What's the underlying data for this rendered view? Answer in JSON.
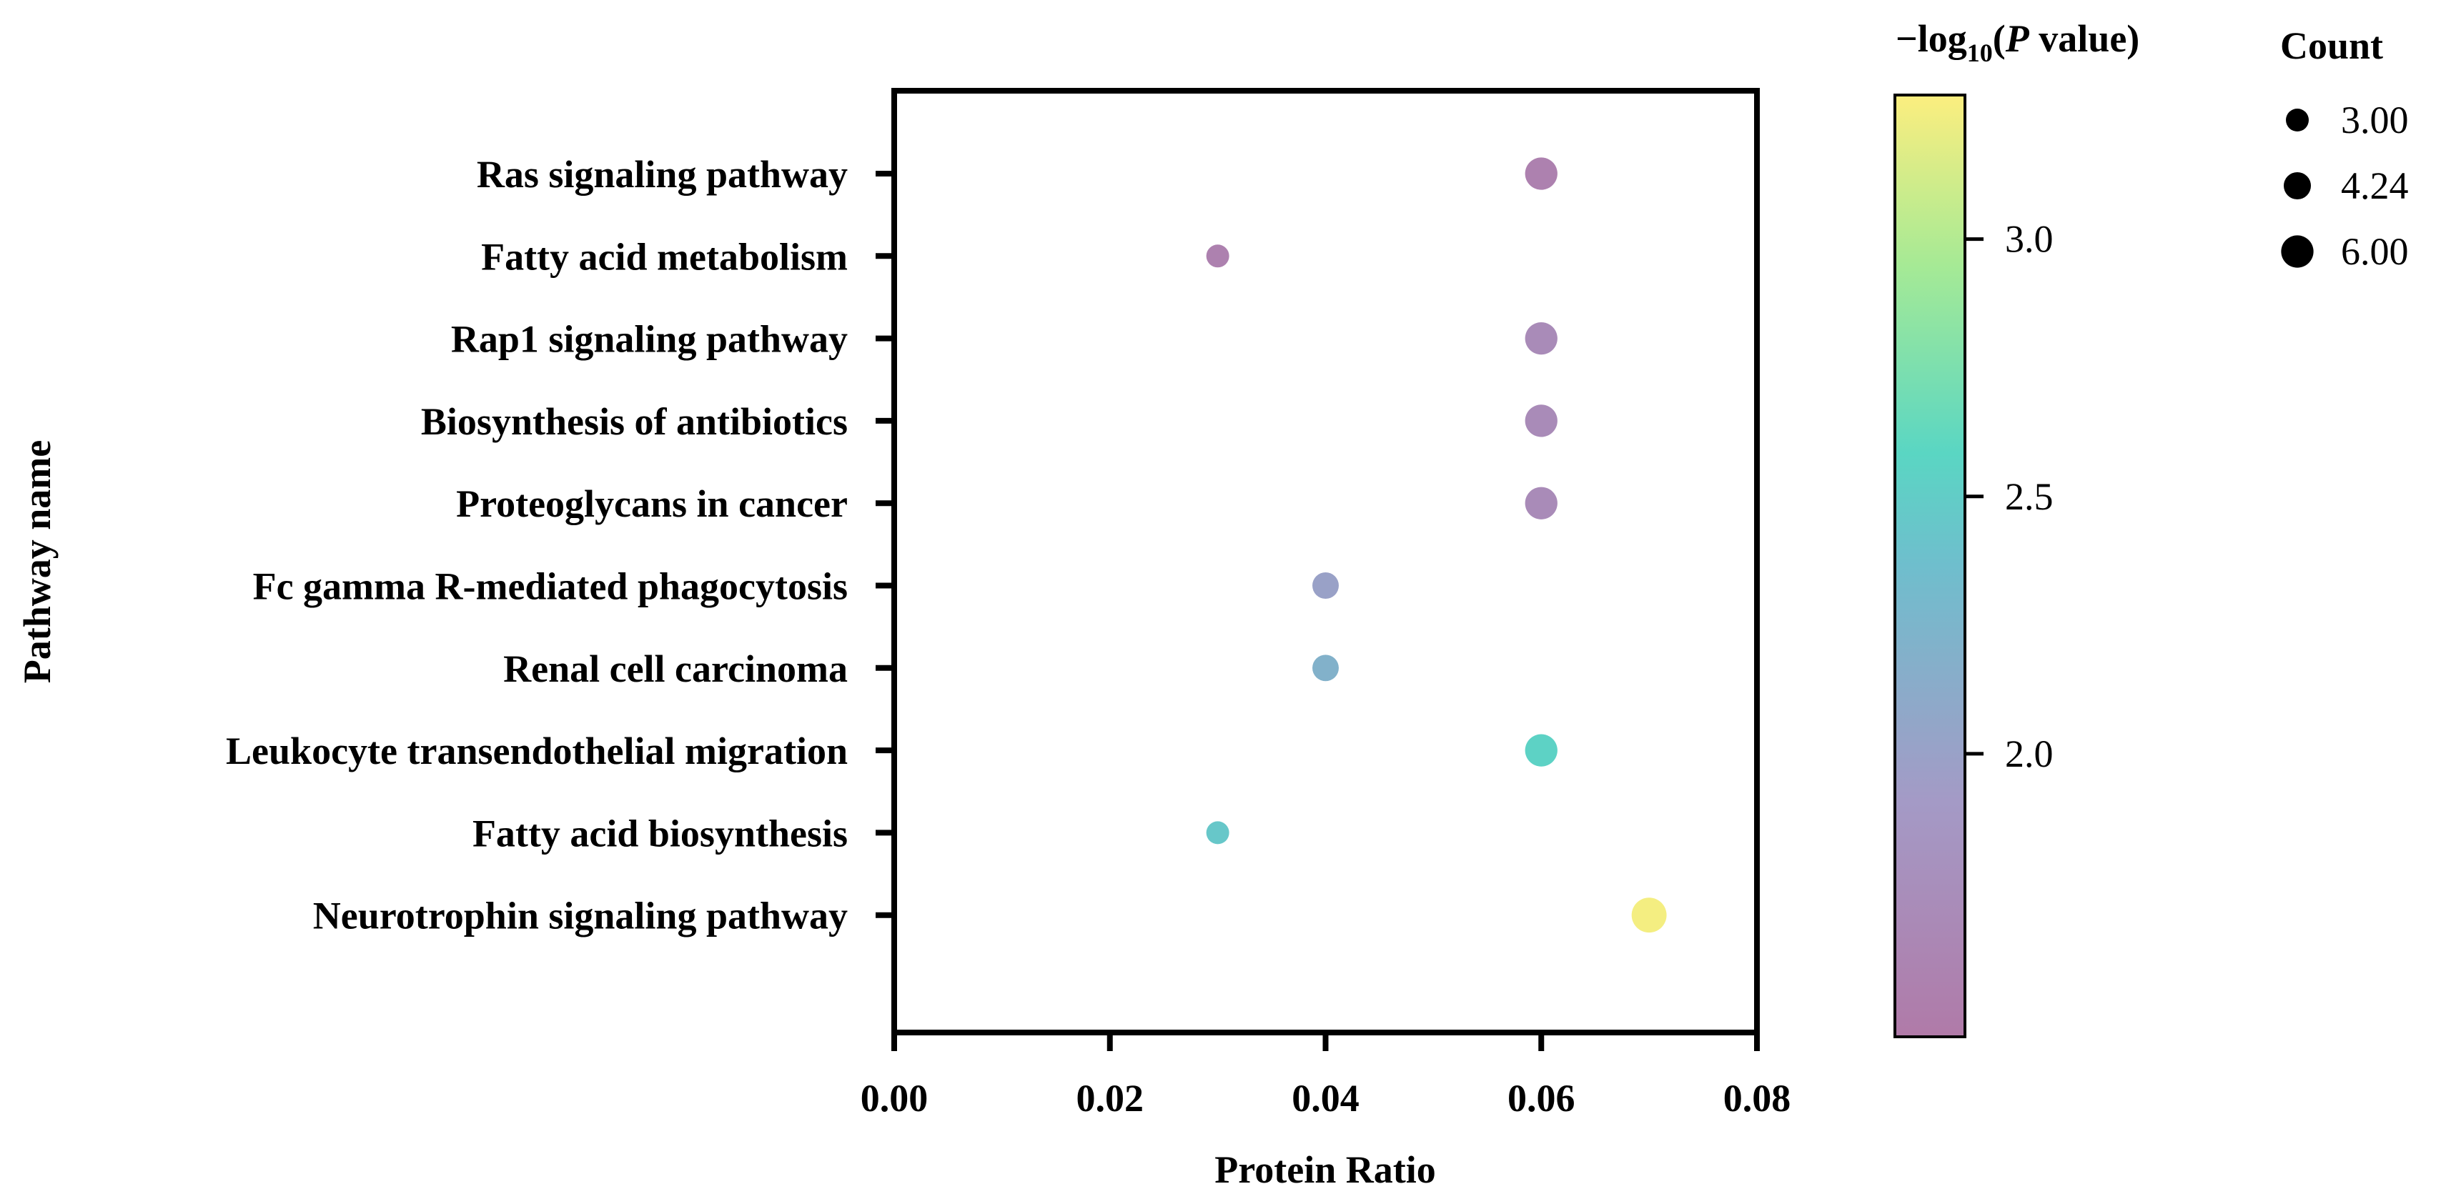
{
  "chart_data": {
    "type": "scatter",
    "title": "",
    "xlabel": "Protein Ratio",
    "ylabel": "Pathway name",
    "xlim": [
      0,
      0.08
    ],
    "x_ticks": [
      "0.00",
      "0.02",
      "0.04",
      "0.06",
      "0.08"
    ],
    "categories": [
      "Ras signaling pathway",
      "Fatty acid metabolism",
      "Rap1 signaling pathway ",
      "Biosynthesis of antibiotics",
      "Proteoglycans in cancer",
      "Fc gamma R-mediated phagocytosis",
      "Renal cell carcinoma",
      "Leukocyte transendothelial migration",
      "Fatty acid biosynthesis",
      "Neurotrophin signaling pathway"
    ],
    "points": [
      {
        "pathway": "Ras signaling pathway",
        "ratio": 0.06,
        "count": 6,
        "neg_log10_p": 1.55
      },
      {
        "pathway": "Fatty acid metabolism",
        "ratio": 0.03,
        "count": 3,
        "neg_log10_p": 1.55
      },
      {
        "pathway": "Rap1 signaling pathway ",
        "ratio": 0.06,
        "count": 6,
        "neg_log10_p": 1.7
      },
      {
        "pathway": "Biosynthesis of antibiotics",
        "ratio": 0.06,
        "count": 6,
        "neg_log10_p": 1.7
      },
      {
        "pathway": "Proteoglycans in cancer",
        "ratio": 0.06,
        "count": 6,
        "neg_log10_p": 1.7
      },
      {
        "pathway": "Fc gamma R-mediated phagocytosis",
        "ratio": 0.04,
        "count": 4,
        "neg_log10_p": 2.0
      },
      {
        "pathway": "Renal cell carcinoma",
        "ratio": 0.04,
        "count": 4,
        "neg_log10_p": 2.2
      },
      {
        "pathway": "Leukocyte transendothelial migration",
        "ratio": 0.06,
        "count": 6,
        "neg_log10_p": 2.55
      },
      {
        "pathway": "Fatty acid biosynthesis",
        "ratio": 0.03,
        "count": 3,
        "neg_log10_p": 2.45
      },
      {
        "pathway": "Neurotrophin signaling pathway",
        "ratio": 0.07,
        "count": 7,
        "neg_log10_p": 3.25
      }
    ],
    "colorbar": {
      "title_prefix": "−",
      "title_log": "log",
      "title_sub": "10",
      "title_open": "(",
      "title_p": "P",
      "title_rest": " value)",
      "range": [
        1.45,
        3.28
      ],
      "ticks": [
        {
          "value": 2.0,
          "label": "2.0"
        },
        {
          "value": 2.5,
          "label": "2.5"
        },
        {
          "value": 3.0,
          "label": "3.0"
        }
      ],
      "stops": [
        {
          "at": 0.0,
          "color": "#b07aa8"
        },
        {
          "at": 0.25,
          "color": "#a49ac6"
        },
        {
          "at": 0.5,
          "color": "#6fbecd"
        },
        {
          "at": 0.62,
          "color": "#5ad6c3"
        },
        {
          "at": 0.82,
          "color": "#a6ea95"
        },
        {
          "at": 1.0,
          "color": "#fcee7f"
        }
      ]
    },
    "size_legend": {
      "title": "Count",
      "entries": [
        {
          "value": 3.0,
          "label": "3.00"
        },
        {
          "value": 4.24,
          "label": "4.24"
        },
        {
          "value": 6.0,
          "label": "6.00"
        }
      ]
    }
  }
}
